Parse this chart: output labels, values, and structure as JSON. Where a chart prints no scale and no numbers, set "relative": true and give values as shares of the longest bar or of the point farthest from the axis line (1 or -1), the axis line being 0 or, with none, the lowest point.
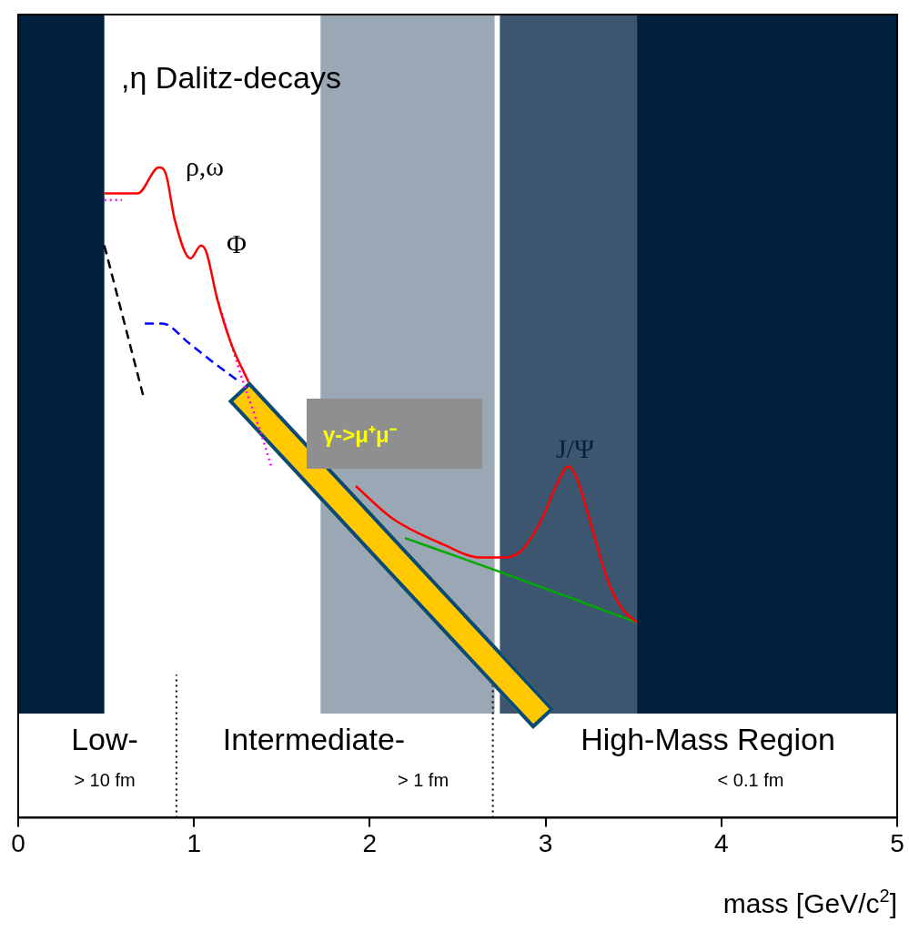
{
  "chart_data": {
    "type": "line",
    "relative": true,
    "xlabel": "mass [GeV/c$^{2}$]",
    "xlim": [
      0,
      5
    ],
    "xticks": [
      0,
      1,
      2,
      3,
      4,
      5
    ],
    "grid": false,
    "legend": false,
    "marker": "none",
    "series": [
      {
        "color": "#ff0000",
        "line_style": "solid",
        "x": [
          0.49,
          0.59,
          0.68,
          0.8,
          0.84,
          0.89,
          0.98,
          1.04,
          1.07,
          1.13,
          1.21,
          1.31,
          1.6,
          1.92,
          2.13,
          2.42,
          2.63,
          2.74,
          2.86,
          2.98,
          3.06,
          3.13,
          3.18,
          3.27,
          3.36,
          3.44,
          3.52
        ],
        "values": [
          0.96,
          0.96,
          0.96,
          1.0,
          0.99,
          0.92,
          0.86,
          0.88,
          0.87,
          0.8,
          0.73,
          0.67,
          null,
          0.51,
          0.46,
          0.42,
          0.4,
          0.4,
          0.41,
          0.46,
          0.51,
          0.54,
          0.52,
          0.44,
          0.36,
          0.32,
          0.3
        ]
      },
      {
        "color": "#ff00ff",
        "line_style": "dotted",
        "x": [
          0.49,
          0.59,
          0.8,
          1.13,
          1.21,
          1.28,
          1.37,
          1.44
        ],
        "values": [
          0.95,
          0.95,
          null,
          0.8,
          0.73,
          0.67,
          0.6,
          0.54
        ]
      },
      {
        "color": "#0000ff",
        "line_style": "dashed",
        "x": [
          0.72,
          0.82,
          0.97,
          1.11,
          1.26
        ],
        "values": [
          0.76,
          0.76,
          0.73,
          0.7,
          0.67
        ]
      },
      {
        "color": "#000000",
        "line_style": "dashed",
        "x": [
          0.49,
          0.71
        ],
        "values": [
          0.88,
          0.65
        ]
      },
      {
        "color": "#00aa00",
        "line_style": "solid",
        "x": [
          2.2,
          2.72,
          3.52
        ],
        "values": [
          0.43,
          0.38,
          0.3
        ]
      }
    ],
    "bands": [
      {
        "axis": "x",
        "from": 0,
        "to": 0.49,
        "color": "#012040"
      },
      {
        "axis": "x",
        "from": 1.72,
        "to": 2.71,
        "color": "#9aa8b5"
      },
      {
        "axis": "x",
        "from": 2.74,
        "to": 3.52,
        "color": "#3d566f"
      },
      {
        "axis": "x",
        "from": 3.52,
        "to": 5,
        "color": "#012040"
      }
    ],
    "ref_lines": [
      {
        "axis": "x",
        "value": 0.9,
        "color": "#000000",
        "line_style": "dotted"
      },
      {
        "axis": "x",
        "value": 2.7,
        "color": "#000000",
        "line_style": "dotted"
      }
    ],
    "annotations": [
      ",η Dalitz-decays",
      "ρ,ω",
      "Φ",
      "J/Ψ",
      "γ->μ⁺μ⁻",
      "Low-",
      "Intermediate-",
      "High-Mass Region",
      "> 10 fm",
      "> 1 fm",
      "< 0.1 fm"
    ]
  }
}
